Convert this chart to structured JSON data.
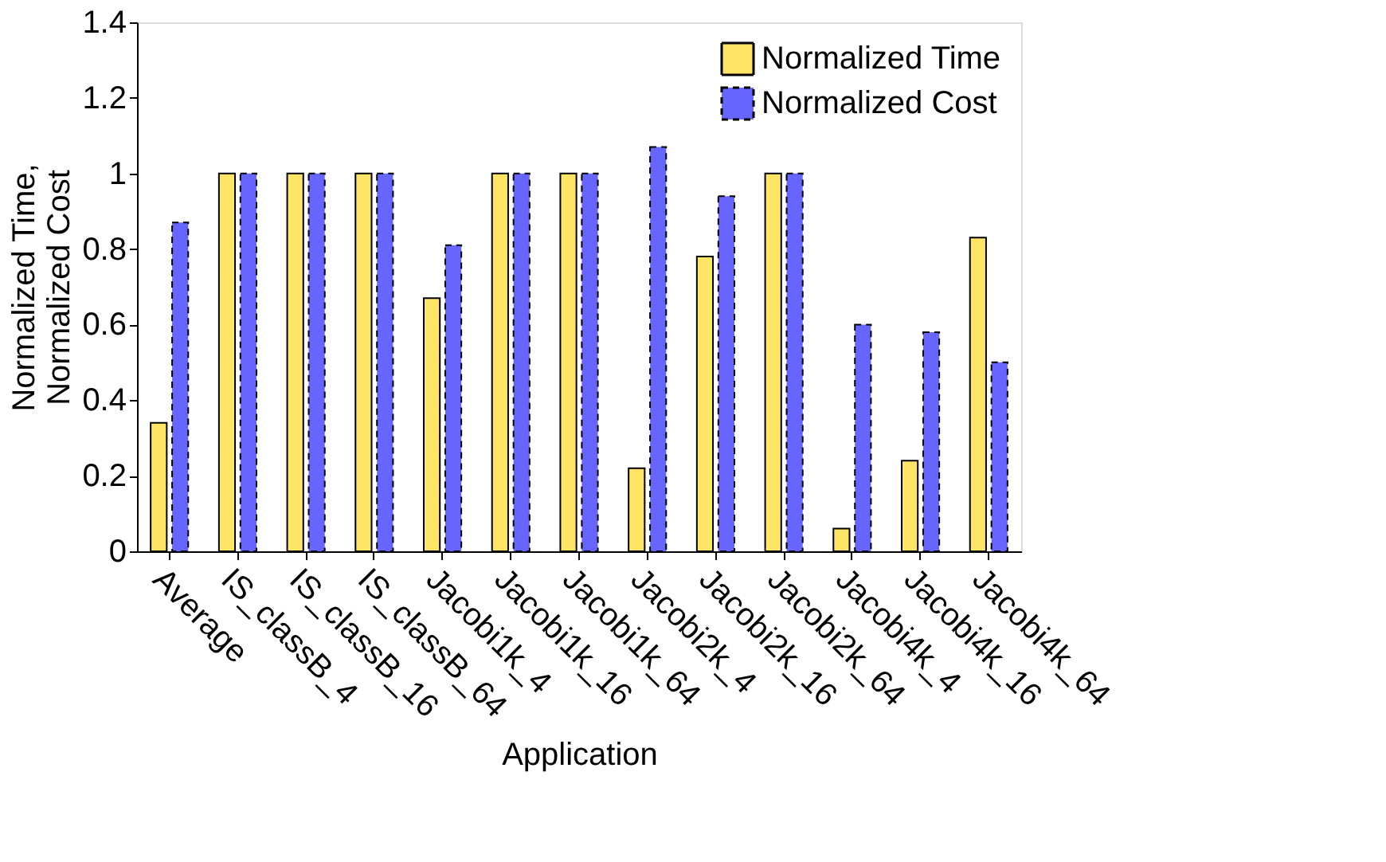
{
  "chart_data": {
    "type": "bar",
    "xlabel": "Application",
    "ylabel": "Normalized Time, Normalized Cost",
    "categories": [
      "Average",
      "IS_classB_4",
      "IS_classB_16",
      "IS_classB_64",
      "Jacobi1k_4",
      "Jacobi1k_16",
      "Jacobi1k_64",
      "Jacobi2k_4",
      "Jacobi2k_16",
      "Jacobi2k_64",
      "Jacobi4k_4",
      "Jacobi4k_16",
      "Jacobi4k_64"
    ],
    "series": [
      {
        "name": "Normalized Time",
        "color": "#ffe566",
        "values": [
          0.34,
          1,
          1,
          1,
          0.67,
          1,
          1,
          0.22,
          0.78,
          1,
          0.06,
          0.24,
          0.83
        ]
      },
      {
        "name": "Normalized Cost",
        "color": "#6666ff",
        "line_style": "dashed",
        "values": [
          0.87,
          1,
          1,
          1,
          0.81,
          1,
          1,
          1.07,
          0.94,
          1,
          0.6,
          0.58,
          0.5
        ]
      }
    ],
    "ylim": [
      0,
      1.4
    ],
    "yticks": [
      0,
      0.2,
      0.4,
      0.6,
      0.8,
      1,
      1.2,
      1.4
    ],
    "grid": false,
    "legend": "top right"
  }
}
